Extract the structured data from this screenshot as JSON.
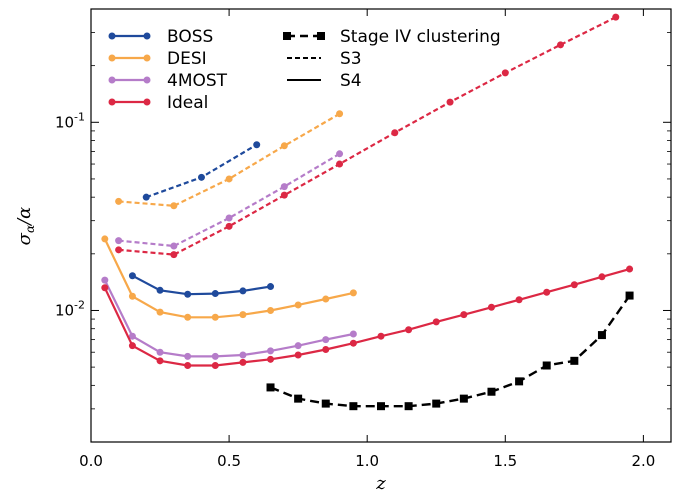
{
  "chart_data": {
    "type": "line",
    "xlabel": "z",
    "ylabel_main": "σ",
    "ylabel_sub": "α",
    "ylabel_den": "/α",
    "xlim": [
      0.0,
      2.1
    ],
    "ylim": [
      0.002,
      0.4
    ],
    "yscale": "log",
    "x_ticks": [
      0.0,
      0.5,
      1.0,
      1.5,
      2.0
    ],
    "x_tick_labels": [
      "0.0",
      "0.5",
      "1.0",
      "1.5",
      "2.0"
    ],
    "y_ticks": [
      {
        "value": 0.1,
        "base": "10",
        "exp": "-1"
      },
      {
        "value": 0.01,
        "base": "10",
        "exp": "-2"
      }
    ],
    "legend_left": [
      {
        "label": "BOSS",
        "color": "#1f4a9c"
      },
      {
        "label": "DESI",
        "color": "#f7a84a"
      },
      {
        "label": "4MOST",
        "color": "#b57cc9"
      },
      {
        "label": "Ideal",
        "color": "#dc2844"
      }
    ],
    "legend_right": [
      {
        "label": "Stage IV clustering",
        "style": "dashed-square"
      },
      {
        "label": "S3",
        "style": "dashed"
      },
      {
        "label": "S4",
        "style": "solid"
      }
    ],
    "series": [
      {
        "name": "BOSS",
        "survey": "S3",
        "color": "#1f4a9c",
        "dash": true,
        "marker": "circle",
        "x": [
          0.2,
          0.4,
          0.6
        ],
        "y": [
          0.04,
          0.051,
          0.076
        ]
      },
      {
        "name": "DESI",
        "survey": "S3",
        "color": "#f7a84a",
        "dash": true,
        "marker": "circle",
        "x": [
          0.1,
          0.3,
          0.5,
          0.7,
          0.9
        ],
        "y": [
          0.038,
          0.036,
          0.05,
          0.075,
          0.111
        ]
      },
      {
        "name": "4MOST",
        "survey": "S3",
        "color": "#b57cc9",
        "dash": true,
        "marker": "circle",
        "x": [
          0.1,
          0.3,
          0.5,
          0.7,
          0.9
        ],
        "y": [
          0.0235,
          0.022,
          0.031,
          0.0455,
          0.068
        ]
      },
      {
        "name": "Ideal",
        "survey": "S3",
        "color": "#dc2844",
        "dash": true,
        "marker": "circle",
        "x": [
          0.1,
          0.3,
          0.5,
          0.7,
          0.9,
          1.1,
          1.3,
          1.5,
          1.7,
          1.9
        ],
        "y": [
          0.021,
          0.0198,
          0.028,
          0.041,
          0.06,
          0.088,
          0.128,
          0.183,
          0.258,
          0.362
        ]
      },
      {
        "name": "BOSS",
        "survey": "S4",
        "color": "#1f4a9c",
        "dash": false,
        "marker": "circle",
        "x": [
          0.15,
          0.25,
          0.35,
          0.45,
          0.55,
          0.65
        ],
        "y": [
          0.0153,
          0.0128,
          0.0122,
          0.0123,
          0.0127,
          0.0134
        ]
      },
      {
        "name": "DESI",
        "survey": "S4",
        "color": "#f7a84a",
        "dash": false,
        "marker": "circle",
        "x": [
          0.05,
          0.15,
          0.25,
          0.35,
          0.45,
          0.55,
          0.65,
          0.75,
          0.85,
          0.95
        ],
        "y": [
          0.024,
          0.0119,
          0.0098,
          0.0092,
          0.0092,
          0.0095,
          0.01,
          0.0107,
          0.0115,
          0.0124
        ]
      },
      {
        "name": "4MOST",
        "survey": "S4",
        "color": "#b57cc9",
        "dash": false,
        "marker": "circle",
        "x": [
          0.05,
          0.15,
          0.25,
          0.35,
          0.45,
          0.55,
          0.65,
          0.75,
          0.85,
          0.95
        ],
        "y": [
          0.0145,
          0.0073,
          0.006,
          0.0057,
          0.0057,
          0.0058,
          0.0061,
          0.0065,
          0.007,
          0.0075
        ]
      },
      {
        "name": "Ideal",
        "survey": "S4",
        "color": "#dc2844",
        "dash": false,
        "marker": "circle",
        "x": [
          0.05,
          0.15,
          0.25,
          0.35,
          0.45,
          0.55,
          0.65,
          0.75,
          0.85,
          0.95,
          1.05,
          1.15,
          1.25,
          1.35,
          1.45,
          1.55,
          1.65,
          1.75,
          1.85,
          1.95
        ],
        "y": [
          0.0132,
          0.0065,
          0.0054,
          0.0051,
          0.0051,
          0.0053,
          0.0055,
          0.0058,
          0.0062,
          0.0067,
          0.0073,
          0.0079,
          0.0087,
          0.0095,
          0.0104,
          0.0114,
          0.0125,
          0.0137,
          0.0151,
          0.0166
        ]
      },
      {
        "name": "Stage IV clustering",
        "survey": "",
        "color": "#000000",
        "dash": true,
        "marker": "square",
        "x": [
          0.65,
          0.75,
          0.85,
          0.95,
          1.05,
          1.15,
          1.25,
          1.35,
          1.45,
          1.55,
          1.65,
          1.75,
          1.85,
          1.95
        ],
        "y": [
          0.0039,
          0.0034,
          0.0032,
          0.0031,
          0.0031,
          0.0031,
          0.0032,
          0.0034,
          0.0037,
          0.0042,
          0.0051,
          0.0054,
          0.0074,
          0.012
        ]
      }
    ]
  }
}
